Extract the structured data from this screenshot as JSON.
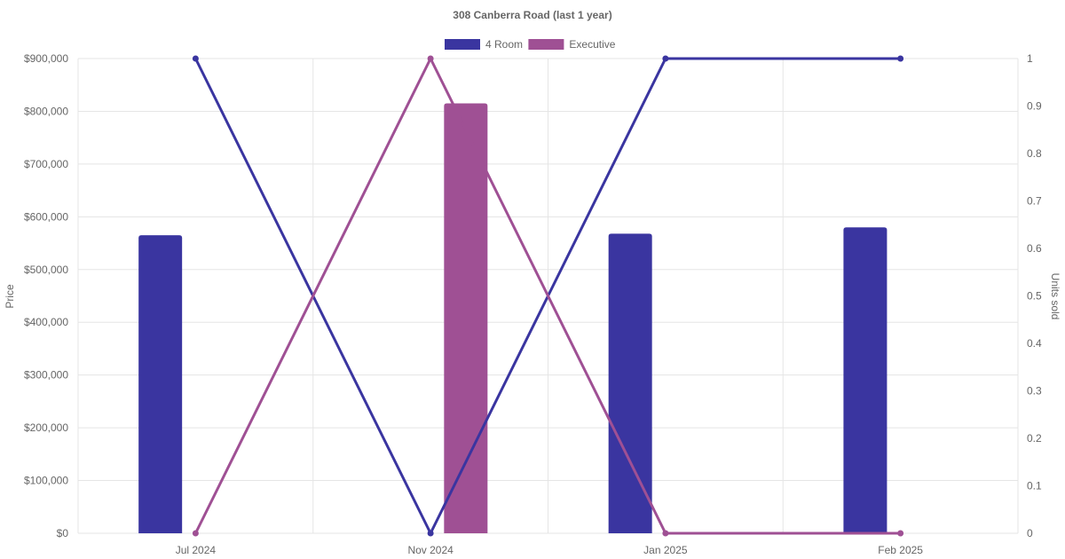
{
  "chart_data": {
    "type": "bar",
    "title": "308 Canberra Road (last 1 year)",
    "categories": [
      "Jul 2024",
      "Nov 2024",
      "Jan 2025",
      "Feb 2025"
    ],
    "y_left": {
      "label": "Price",
      "range": [
        0,
        900000
      ],
      "ticks": [
        "$0",
        "$100,000",
        "$200,000",
        "$300,000",
        "$400,000",
        "$500,000",
        "$600,000",
        "$700,000",
        "$800,000",
        "$900,000"
      ]
    },
    "y_right": {
      "label": "Units sold",
      "range": [
        0,
        1
      ],
      "ticks": [
        "0",
        "0.1",
        "0.2",
        "0.3",
        "0.4",
        "0.5",
        "0.6",
        "0.7",
        "0.8",
        "0.9",
        "1"
      ]
    },
    "legend": {
      "position": "top",
      "entries": [
        "4 Room",
        "Executive"
      ]
    },
    "grid": true,
    "series": [
      {
        "name": "4 Room",
        "color": "#3a35a0",
        "bar_values": [
          565000,
          null,
          568000,
          580000
        ],
        "line_values": [
          1,
          0,
          1,
          1
        ]
      },
      {
        "name": "Executive",
        "color": "#9f5094",
        "bar_values": [
          null,
          815000,
          null,
          null
        ],
        "line_values": [
          0,
          1,
          0,
          0
        ]
      }
    ]
  }
}
